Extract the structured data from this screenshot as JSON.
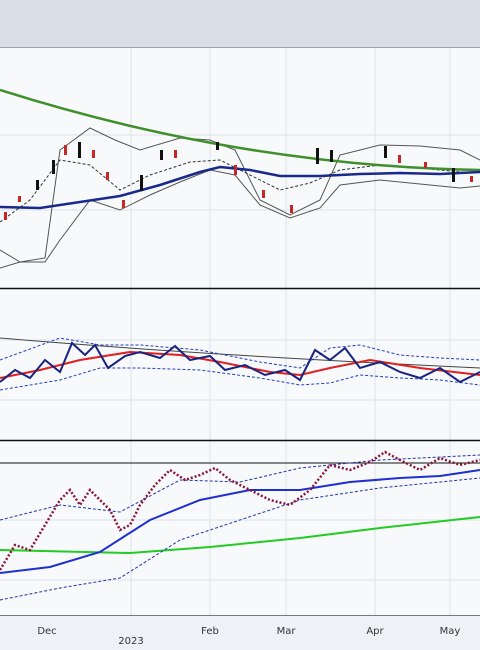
{
  "x_axis": {
    "labels": [
      "Dec",
      "Feb",
      "Mar",
      "Apr",
      "May"
    ],
    "year": "2023"
  }
}
